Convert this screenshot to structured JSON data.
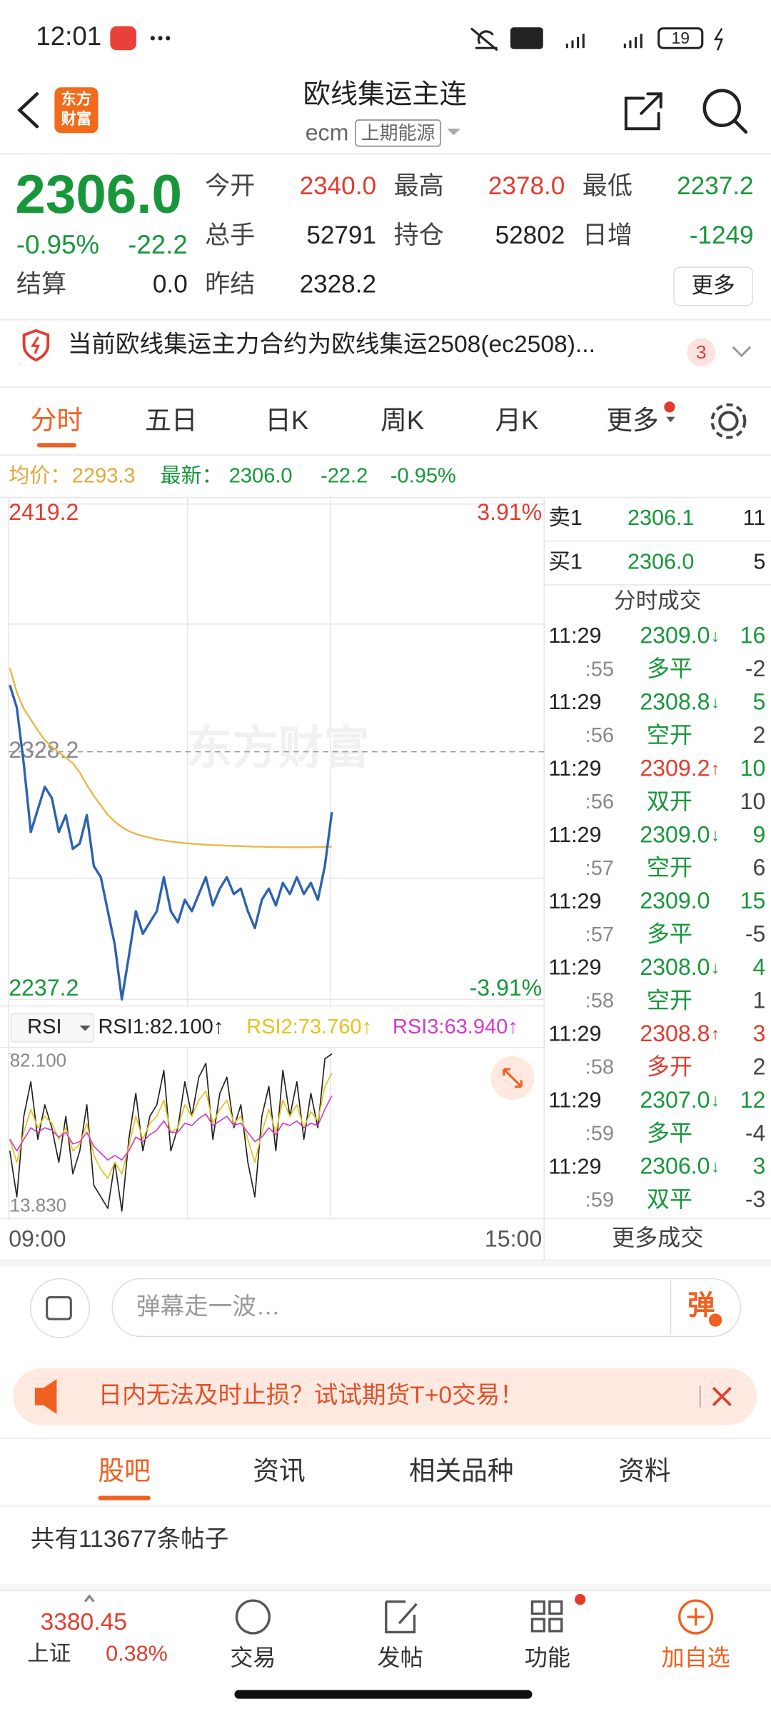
{
  "status_bar": {
    "time": "12:01",
    "battery": "19"
  },
  "header": {
    "logo": [
      "东方",
      "财富"
    ],
    "title": "欧线集运主连",
    "code": "ecm",
    "exchange": "上期能源"
  },
  "quote": {
    "price": "2306.0",
    "change_pct": "-0.95%",
    "change": "-22.2",
    "fields": [
      {
        "label": "今开",
        "value": "2340.0",
        "color": "#e33b2e"
      },
      {
        "label": "最高",
        "value": "2378.0",
        "color": "#e33b2e"
      },
      {
        "label": "最低",
        "value": "2237.2",
        "color": "#17973a"
      },
      {
        "label": "总手",
        "value": "52791",
        "color": "#222222"
      },
      {
        "label": "持仓",
        "value": "52802",
        "color": "#222222"
      },
      {
        "label": "日增",
        "value": "-1249",
        "color": "#17973a"
      },
      {
        "label": "结算",
        "value": "0.0",
        "color": "#222222"
      },
      {
        "label": "昨结",
        "value": "2328.2",
        "color": "#222222"
      }
    ],
    "more": "更多"
  },
  "notice": {
    "text": "当前欧线集运主力合约为欧线集运2508(ec2508)...",
    "badge": "3"
  },
  "tabs": {
    "items": [
      "分时",
      "五日",
      "日K",
      "周K",
      "月K",
      "更多"
    ],
    "active": 0
  },
  "chart_data": [
    {
      "type": "line",
      "watermark": "东方财富",
      "summary": {
        "avg": "2293.3",
        "latest": "2306.0",
        "change": "-22.2",
        "change_pct": "-0.95%"
      },
      "x_labels": [
        "09:00",
        "15:00"
      ],
      "ylim": [
        2237.2,
        2419.2
      ],
      "yticks": [
        2237.2,
        2328.2,
        2419.2
      ],
      "y2lim": [
        -3.91,
        3.91
      ],
      "y2ticks": [
        {
          "value": -3.91,
          "label": "-3.91%"
        },
        {
          "value": 3.91,
          "label": "3.91%"
        }
      ],
      "series": [
        {
          "name": "最新：",
          "color": "#2c62b0",
          "values": [
            2352.7,
            2344.4,
            2323.6,
            2298.7,
            2307.0,
            2315.3,
            2311.2,
            2298.7,
            2304.9,
            2292.5,
            2294.5,
            2304.9,
            2286.2,
            2282.1,
            2269.6,
            2257.2,
            2237.2,
            2253.0,
            2269.6,
            2261.3,
            2265.5,
            2269.6,
            2282.1,
            2269.6,
            2265.5,
            2273.8,
            2269.6,
            2275.9,
            2282.1,
            2271.7,
            2277.9,
            2282.1,
            2275.9,
            2277.9,
            2269.6,
            2263.4,
            2273.8,
            2277.9,
            2271.7,
            2280.0,
            2275.9,
            2282.1,
            2275.9,
            2280.0,
            2273.8,
            2286.2,
            2306.0
          ]
        },
        {
          "name": "均价：",
          "color": "#e8b84a",
          "values": [
            2359.0,
            2350.0,
            2344.0,
            2340.0,
            2336.0,
            2332.5,
            2330.0,
            2328.0,
            2326.0,
            2324.0,
            2320.5,
            2316.0,
            2312.0,
            2308.5,
            2305.0,
            2302.5,
            2300.5,
            2299.0,
            2298.0,
            2297.2,
            2296.6,
            2296.0,
            2295.6,
            2295.2,
            2294.9,
            2294.6,
            2294.4,
            2294.2,
            2294.0,
            2293.9,
            2293.8,
            2293.7,
            2293.6,
            2293.5,
            2293.4,
            2293.3,
            2293.3,
            2293.2,
            2293.2,
            2293.1,
            2293.1,
            2293.1,
            2293.1,
            2293.1,
            2293.2,
            2293.2,
            2293.3
          ]
        }
      ]
    },
    {
      "type": "line",
      "selector": "RSI",
      "ylim": [
        13.83,
        82.1
      ],
      "yticks": [
        {
          "value": 13.83,
          "label": "13.830"
        },
        {
          "value": 82.1,
          "label": "82.100"
        }
      ],
      "series": [
        {
          "name": "RSI1:82.100↑",
          "color": "#222222",
          "values": [
            40,
            20,
            55,
            70,
            45,
            60,
            50,
            35,
            55,
            30,
            40,
            60,
            25,
            20,
            15,
            35,
            13.83,
            45,
            65,
            40,
            55,
            60,
            75,
            40,
            50,
            70,
            55,
            72,
            78,
            45,
            65,
            72,
            50,
            60,
            35,
            20,
            55,
            68,
            40,
            75,
            55,
            70,
            45,
            65,
            50,
            80,
            82.1
          ]
        },
        {
          "name": "RSI2:73.760↑",
          "color": "#e8c21a",
          "values": [
            45,
            35,
            48,
            58,
            50,
            55,
            52,
            45,
            50,
            40,
            43,
            52,
            38,
            32,
            28,
            35,
            30,
            42,
            55,
            45,
            52,
            55,
            62,
            48,
            50,
            60,
            55,
            62,
            66,
            52,
            58,
            62,
            52,
            55,
            45,
            35,
            48,
            58,
            48,
            62,
            55,
            60,
            50,
            57,
            53,
            68,
            73.76
          ]
        },
        {
          "name": "RSI3:63.940↑",
          "color": "#d23ad2",
          "values": [
            45,
            40,
            45,
            50,
            48,
            50,
            49,
            46,
            48,
            43,
            44,
            48,
            42,
            39,
            36,
            38,
            36,
            40,
            46,
            44,
            47,
            49,
            53,
            48,
            48,
            52,
            51,
            54,
            56,
            51,
            53,
            55,
            51,
            52,
            48,
            44,
            46,
            50,
            47,
            52,
            51,
            53,
            50,
            52,
            51,
            58,
            63.94
          ]
        }
      ]
    }
  ],
  "order_book": {
    "rows": [
      {
        "label": "卖1",
        "price": "2306.1",
        "volume": "11"
      },
      {
        "label": "买1",
        "price": "2306.0",
        "volume": "5"
      }
    ],
    "trades_title": "分时成交",
    "more": "更多成交"
  },
  "trades": [
    {
      "time": "11:29",
      "price": "2309.0",
      "arrow": "↓",
      "volume": "16",
      "color": "#17973a",
      "volume_color": "#17973a"
    },
    {
      "time": ":55",
      "kind": "多平",
      "volume": "-2",
      "color": "#17973a"
    },
    {
      "time": "11:29",
      "price": "2308.8",
      "arrow": "↓",
      "volume": "5",
      "color": "#17973a",
      "volume_color": "#17973a"
    },
    {
      "time": ":56",
      "kind": "空开",
      "volume": "2",
      "color": "#17973a"
    },
    {
      "time": "11:29",
      "price": "2309.2",
      "arrow": "↑",
      "volume": "10",
      "color": "#e33b2e",
      "volume_color": "#17973a"
    },
    {
      "time": ":56",
      "kind": "双开",
      "volume": "10",
      "color": "#17973a"
    },
    {
      "time": "11:29",
      "price": "2309.0",
      "arrow": "↓",
      "volume": "9",
      "color": "#17973a",
      "volume_color": "#17973a"
    },
    {
      "time": ":57",
      "kind": "空开",
      "volume": "6",
      "color": "#17973a"
    },
    {
      "time": "11:29",
      "price": "2309.0",
      "volume": "15",
      "color": "#17973a",
      "volume_color": "#17973a"
    },
    {
      "time": ":57",
      "kind": "多平",
      "volume": "-5",
      "color": "#17973a"
    },
    {
      "time": "11:29",
      "price": "2308.0",
      "arrow": "↓",
      "volume": "4",
      "color": "#17973a",
      "volume_color": "#17973a"
    },
    {
      "time": ":58",
      "kind": "空开",
      "volume": "1",
      "color": "#17973a"
    },
    {
      "time": "11:29",
      "price": "2308.8",
      "arrow": "↑",
      "volume": "3",
      "color": "#e33b2e",
      "volume_color": "#e33b2e"
    },
    {
      "time": ":58",
      "kind": "多开",
      "volume": "2",
      "color": "#e33b2e"
    },
    {
      "time": "11:29",
      "price": "2307.0",
      "arrow": "↓",
      "volume": "12",
      "color": "#17973a",
      "volume_color": "#17973a"
    },
    {
      "time": ":59",
      "kind": "多平",
      "volume": "-4",
      "color": "#17973a"
    },
    {
      "time": "11:29",
      "price": "2306.0",
      "arrow": "↓",
      "volume": "3",
      "color": "#17973a",
      "volume_color": "#17973a"
    },
    {
      "time": ":59",
      "kind": "双平",
      "volume": "-3",
      "color": "#17973a"
    }
  ],
  "comment": {
    "placeholder": "弹幕走一波…",
    "button": "弹"
  },
  "banner": {
    "text": "日内无法及时止损？试试期货T+0交易！"
  },
  "community": {
    "tabs": [
      "股吧",
      "资讯",
      "相关品种",
      "资料"
    ],
    "active": 0,
    "post_count": "共有113677条帖子"
  },
  "bottom_nav": {
    "index": {
      "value": "3380.45",
      "name": "上证",
      "change": "0.38%"
    },
    "items": [
      "交易",
      "发帖",
      "功能",
      "加自选"
    ]
  }
}
